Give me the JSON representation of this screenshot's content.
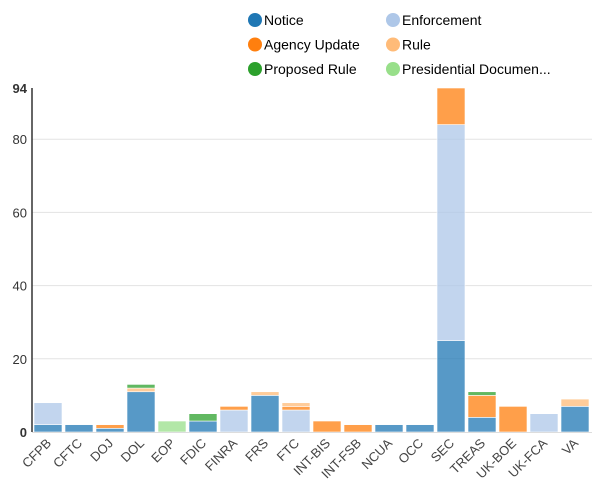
{
  "chart_data": {
    "type": "bar",
    "stacked": true,
    "categories": [
      "CFPB",
      "CFTC",
      "DOJ",
      "DOL",
      "EOP",
      "FDIC",
      "FINRA",
      "FRS",
      "FTC",
      "INT-BIS",
      "INT-FSB",
      "NCUA",
      "OCC",
      "SEC",
      "TREAS",
      "UK-BOE",
      "UK-FCA",
      "VA"
    ],
    "series": [
      {
        "name": "Notice",
        "color": "#1f77b4",
        "values": [
          2,
          2,
          1,
          11,
          0,
          3,
          0,
          10,
          0,
          0,
          0,
          2,
          2,
          25,
          4,
          0,
          0,
          7
        ]
      },
      {
        "name": "Enforcement",
        "color": "#aec7e8",
        "values": [
          6,
          0,
          0,
          0,
          0,
          0,
          6,
          0,
          6,
          0,
          0,
          0,
          0,
          59,
          0,
          0,
          5,
          0
        ]
      },
      {
        "name": "Agency Update",
        "color": "#ff7f0e",
        "values": [
          0,
          0,
          1,
          0,
          0,
          0,
          1,
          0,
          1,
          3,
          2,
          0,
          0,
          10,
          6,
          7,
          0,
          0
        ]
      },
      {
        "name": "Rule",
        "color": "#ffbb78",
        "values": [
          0,
          0,
          0,
          1,
          0,
          0,
          0,
          1,
          1,
          0,
          0,
          0,
          0,
          0,
          0,
          0,
          0,
          2
        ]
      },
      {
        "name": "Proposed Rule",
        "color": "#2ca02c",
        "values": [
          0,
          0,
          0,
          1,
          0,
          2,
          0,
          0,
          0,
          0,
          0,
          0,
          0,
          0,
          1,
          0,
          0,
          0
        ]
      },
      {
        "name": "Presidential Documen...",
        "color": "#98df8a",
        "values": [
          0,
          0,
          0,
          0,
          3,
          0,
          0,
          0,
          0,
          0,
          0,
          0,
          0,
          0,
          0,
          0,
          0,
          0
        ]
      }
    ],
    "yticks": [
      "0",
      "20",
      "40",
      "60",
      "80",
      "94"
    ],
    "ylim": [
      0,
      94
    ],
    "grid": true,
    "legend_position": "top-right",
    "xlabel": "",
    "ylabel": ""
  }
}
